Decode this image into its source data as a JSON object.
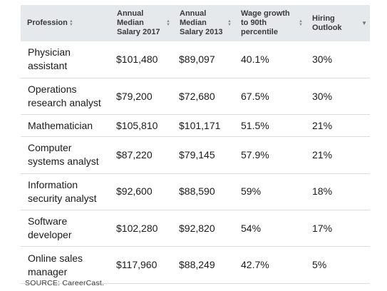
{
  "table": {
    "headers": [
      {
        "label": "Profession",
        "icon": "sort-icon"
      },
      {
        "label": "Annual Median Salary 2017",
        "icon": "sort-icon"
      },
      {
        "label": "Annual Median Salary 2013",
        "icon": "sort-icon"
      },
      {
        "label": "Wage growth to 90th percentile",
        "icon": "sort-icon"
      },
      {
        "label": "Hiring Outlook",
        "icon": "chevron-down-icon"
      }
    ],
    "rows": [
      {
        "profession": "Physician assistant",
        "salary_2017": "$101,480",
        "salary_2013": "$89,097",
        "wage_growth": "40.1%",
        "outlook": "30%"
      },
      {
        "profession": "Operations research analyst",
        "salary_2017": "$79,200",
        "salary_2013": "$72,680",
        "wage_growth": "67.5%",
        "outlook": "30%"
      },
      {
        "profession": "Mathematician",
        "salary_2017": "$105,810",
        "salary_2013": "$101,171",
        "wage_growth": "51.5%",
        "outlook": "21%"
      },
      {
        "profession": "Computer systems analyst",
        "salary_2017": "$87,220",
        "salary_2013": "$79,145",
        "wage_growth": "57.9%",
        "outlook": "21%"
      },
      {
        "profession": "Information security analyst",
        "salary_2017": "$92,600",
        "salary_2013": "$88,590",
        "wage_growth": "59%",
        "outlook": "18%"
      },
      {
        "profession": "Software developer",
        "salary_2017": "$102,280",
        "salary_2013": "$92,820",
        "wage_growth": "54%",
        "outlook": "17%"
      },
      {
        "profession": "Online sales manager",
        "salary_2017": "$117,960",
        "salary_2013": "$88,249",
        "wage_growth": "42.7%",
        "outlook": "5%"
      }
    ]
  },
  "source": "SOURCE: CareerCast."
}
